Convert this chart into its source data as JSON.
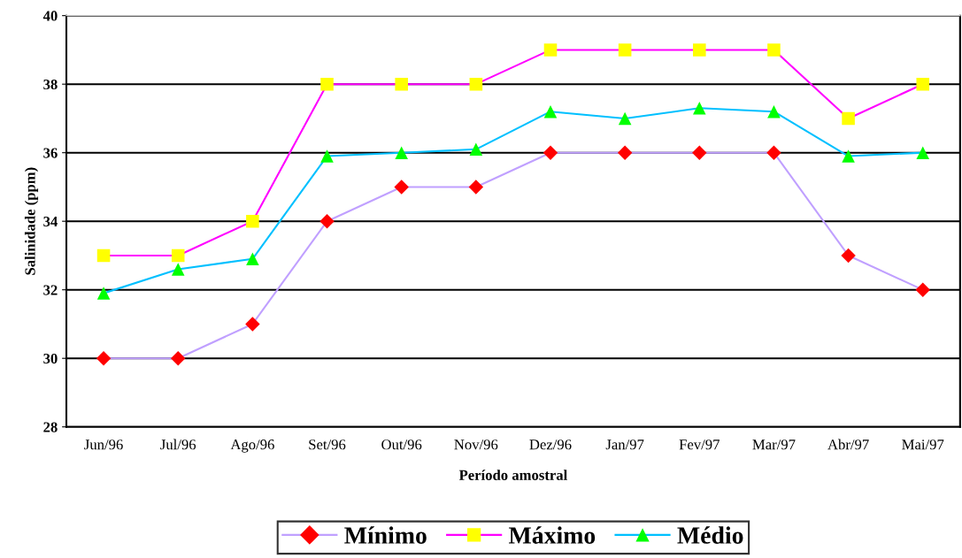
{
  "chart_data": {
    "type": "line",
    "xlabel": "Período amostral",
    "ylabel": "Salinidade (ppm)",
    "categories": [
      "Jun/96",
      "Jul/96",
      "Ago/96",
      "Set/96",
      "Out/96",
      "Nov/96",
      "Dez/96",
      "Jan/97",
      "Fev/97",
      "Mar/97",
      "Abr/97",
      "Mai/97"
    ],
    "series": [
      {
        "name": "Mínimo",
        "color": "#c0a0ff",
        "marker": "diamond",
        "colors": [
          "#ff0000",
          "#ff0000",
          "#ff0000",
          "#ff0000",
          "#ff0000",
          "#ff0000",
          "#ff0000",
          "#ff0000",
          "#ff0000",
          "#ff0000",
          "#ff0000",
          "#ff0000"
        ],
        "values": [
          30,
          30,
          31,
          34,
          35,
          35,
          36,
          36,
          36,
          36,
          33,
          32
        ]
      },
      {
        "name": "Máximo",
        "color": "#ff00ff",
        "marker": "square",
        "colors": [
          "#ffff00",
          "#ffff00",
          "#ffff00",
          "#ffff00",
          "#ffff00",
          "#ffff00",
          "#ffff00",
          "#ffff00",
          "#ffff00",
          "#ffff00",
          "#ffff00",
          "#ffff00"
        ],
        "values": [
          33,
          33,
          34,
          38,
          38,
          38,
          39,
          39,
          39,
          39,
          37,
          38
        ]
      },
      {
        "name": "Médio",
        "color": "#00c0ff",
        "marker": "triangle",
        "colors": [
          "#00ff00",
          "#00ff00",
          "#00ff00",
          "#00ff00",
          "#00ff00",
          "#00ff00",
          "#00ff00",
          "#00ff00",
          "#00ff00",
          "#00ff00",
          "#00ff00",
          "#00ff00"
        ],
        "values": [
          31.9,
          32.6,
          32.9,
          35.9,
          36.0,
          36.1,
          37.2,
          37.0,
          37.3,
          37.2,
          35.9,
          36.0
        ]
      }
    ],
    "ylim": [
      28,
      40
    ],
    "yticks": [
      28,
      30,
      32,
      34,
      36,
      38,
      40
    ],
    "grid": "y",
    "legend": "bottom",
    "line_style": "solid"
  }
}
